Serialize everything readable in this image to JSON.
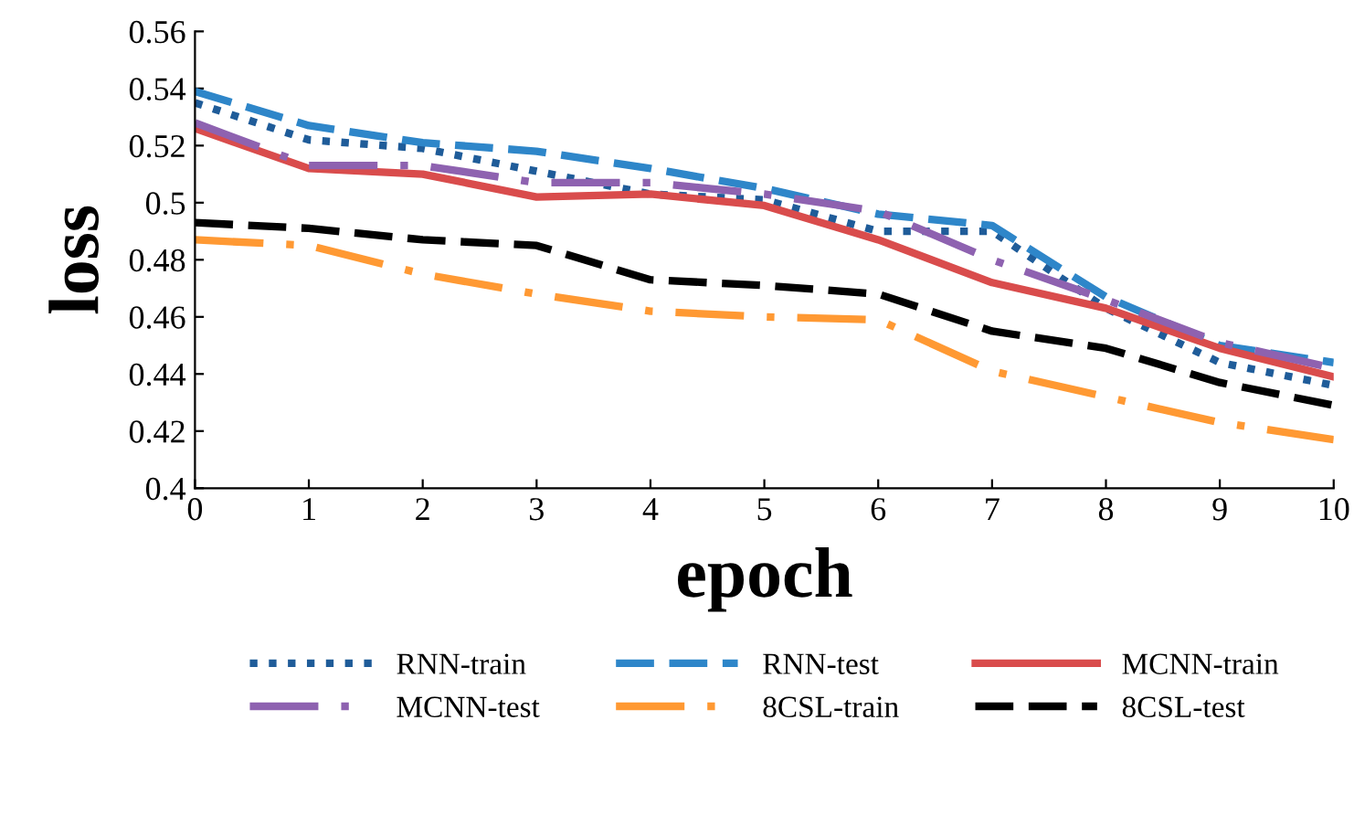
{
  "chart_data": {
    "type": "line",
    "xlabel": "epoch",
    "ylabel": "loss",
    "x": [
      0,
      1,
      2,
      3,
      4,
      5,
      6,
      7,
      8,
      9,
      10
    ],
    "xlim": [
      0,
      10
    ],
    "xticks": [
      0,
      1,
      2,
      3,
      4,
      5,
      6,
      7,
      8,
      9,
      10
    ],
    "ylim": [
      0.4,
      0.56
    ],
    "yticks": [
      0.4,
      0.42,
      0.44,
      0.46,
      0.48,
      0.5,
      0.52,
      0.54,
      0.56
    ],
    "grid": false,
    "legend": "bottom",
    "marker": "none",
    "series": [
      {
        "name": "RNN-train",
        "color": "#1f5c99",
        "line_style": "dotted",
        "values": [
          0.535,
          0.522,
          0.519,
          0.511,
          0.503,
          0.501,
          0.49,
          0.49,
          0.463,
          0.444,
          0.436
        ]
      },
      {
        "name": "RNN-test",
        "color": "#2e86c9",
        "line_style": "dashed",
        "values": [
          0.539,
          0.527,
          0.521,
          0.518,
          0.512,
          0.505,
          0.496,
          0.492,
          0.467,
          0.45,
          0.444
        ]
      },
      {
        "name": "MCNN-train",
        "color": "#d94c4c",
        "line_style": "solid",
        "values": [
          0.526,
          0.512,
          0.51,
          0.502,
          0.503,
          0.499,
          0.487,
          0.472,
          0.463,
          0.449,
          0.439
        ]
      },
      {
        "name": "MCNN-test",
        "color": "#8e62b0",
        "line_style": "dashdot",
        "values": [
          0.528,
          0.513,
          0.513,
          0.507,
          0.507,
          0.503,
          0.497,
          0.48,
          0.466,
          0.451,
          0.442
        ]
      },
      {
        "name": "8CSL-train",
        "color": "#ff9933",
        "line_style": "dashdot",
        "values": [
          0.487,
          0.485,
          0.475,
          0.468,
          0.462,
          0.46,
          0.459,
          0.441,
          0.432,
          0.423,
          0.417
        ]
      },
      {
        "name": "8CSL-test",
        "color": "#000000",
        "line_style": "dashed",
        "values": [
          0.493,
          0.491,
          0.487,
          0.485,
          0.473,
          0.471,
          0.468,
          0.455,
          0.449,
          0.437,
          0.429
        ]
      }
    ]
  }
}
